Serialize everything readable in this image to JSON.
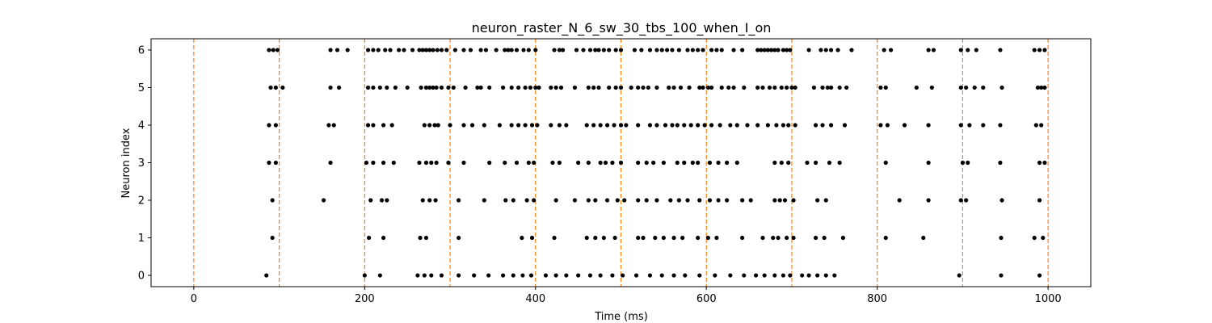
{
  "chart_data": {
    "type": "scatter",
    "title": "neuron_raster_N_6_sw_30_tbs_100_when_I_on",
    "xlabel": "Time (ms)",
    "ylabel": "Neuron index",
    "xlim": [
      -50,
      1050
    ],
    "ylim": [
      -0.3,
      6.3
    ],
    "xticks": [
      0,
      200,
      400,
      600,
      800,
      1000
    ],
    "yticks": [
      0,
      1,
      2,
      3,
      4,
      5,
      6
    ],
    "grid": false,
    "marker_color": "#000000",
    "vline_color": "#ff7f0e",
    "vlines": [
      0,
      100,
      200,
      300,
      400,
      500,
      600,
      700,
      800,
      900,
      1000
    ],
    "series": [
      {
        "neuron": 0,
        "spikes": [
          85,
          200,
          218,
          262,
          270,
          278,
          290,
          310,
          328,
          345,
          362,
          374,
          385,
          395,
          412,
          424,
          436,
          450,
          464,
          476,
          490,
          502,
          518,
          534,
          548,
          562,
          575,
          592,
          610,
          628,
          644,
          658,
          668,
          680,
          690,
          698,
          712,
          720,
          730,
          740,
          750,
          896,
          945,
          990
        ]
      },
      {
        "neuron": 1,
        "spikes": [
          92,
          205,
          222,
          265,
          272,
          310,
          384,
          396,
          422,
          460,
          470,
          480,
          493,
          520,
          526,
          540,
          550,
          562,
          572,
          590,
          602,
          612,
          642,
          666,
          678,
          684,
          694,
          702,
          728,
          738,
          760,
          810,
          854,
          945,
          984,
          994
        ]
      },
      {
        "neuron": 2,
        "spikes": [
          92,
          152,
          207,
          220,
          226,
          268,
          276,
          283,
          310,
          340,
          365,
          374,
          390,
          398,
          424,
          446,
          462,
          470,
          484,
          496,
          504,
          520,
          530,
          542,
          558,
          568,
          578,
          592,
          604,
          614,
          624,
          642,
          652,
          680,
          686,
          692,
          702,
          730,
          740,
          826,
          860,
          898,
          904,
          946,
          990
        ]
      },
      {
        "neuron": 3,
        "spikes": [
          88,
          96,
          160,
          202,
          210,
          222,
          234,
          264,
          272,
          278,
          284,
          298,
          316,
          346,
          364,
          378,
          392,
          398,
          420,
          428,
          450,
          462,
          476,
          482,
          490,
          500,
          520,
          530,
          538,
          550,
          566,
          574,
          584,
          590,
          604,
          614,
          624,
          636,
          680,
          688,
          696,
          718,
          728,
          744,
          756,
          810,
          860,
          900,
          906,
          944,
          990,
          996
        ]
      },
      {
        "neuron": 4,
        "spikes": [
          88,
          96,
          158,
          164,
          204,
          210,
          222,
          232,
          270,
          276,
          282,
          286,
          300,
          316,
          326,
          340,
          358,
          372,
          380,
          388,
          396,
          402,
          418,
          428,
          436,
          460,
          468,
          476,
          484,
          492,
          500,
          506,
          520,
          534,
          542,
          552,
          560,
          566,
          574,
          582,
          590,
          598,
          606,
          616,
          628,
          636,
          648,
          660,
          672,
          682,
          690,
          696,
          704,
          728,
          736,
          746,
          762,
          804,
          812,
          832,
          860,
          898,
          908,
          924,
          944,
          986,
          992
        ]
      },
      {
        "neuron": 5,
        "spikes": [
          90,
          96,
          104,
          160,
          170,
          204,
          210,
          218,
          226,
          236,
          250,
          266,
          272,
          276,
          280,
          284,
          290,
          298,
          304,
          318,
          332,
          336,
          346,
          362,
          372,
          380,
          388,
          394,
          400,
          404,
          418,
          424,
          430,
          446,
          462,
          468,
          474,
          486,
          494,
          500,
          512,
          520,
          526,
          532,
          542,
          556,
          562,
          570,
          580,
          592,
          596,
          602,
          606,
          618,
          626,
          632,
          644,
          660,
          666,
          674,
          680,
          688,
          694,
          700,
          704,
          726,
          736,
          742,
          746,
          756,
          764,
          804,
          810,
          846,
          864,
          898,
          904,
          914,
          924,
          946,
          988,
          992,
          996
        ]
      },
      {
        "neuron": 6,
        "spikes": [
          88,
          93,
          98,
          160,
          168,
          180,
          204,
          210,
          216,
          224,
          230,
          240,
          246,
          256,
          264,
          268,
          272,
          276,
          280,
          285,
          290,
          296,
          306,
          316,
          324,
          336,
          342,
          354,
          364,
          368,
          372,
          378,
          386,
          392,
          400,
          422,
          428,
          432,
          448,
          456,
          464,
          470,
          474,
          480,
          486,
          494,
          500,
          516,
          524,
          534,
          542,
          548,
          554,
          560,
          568,
          578,
          584,
          590,
          596,
          606,
          612,
          618,
          632,
          642,
          660,
          664,
          668,
          672,
          676,
          680,
          684,
          690,
          694,
          698,
          720,
          734,
          740,
          746,
          754,
          770,
          808,
          816,
          860,
          866,
          898,
          906,
          916,
          944,
          984,
          990,
          996
        ]
      }
    ]
  }
}
